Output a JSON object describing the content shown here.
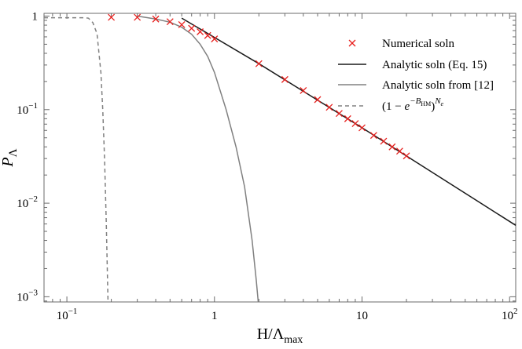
{
  "chart_data": {
    "type": "line",
    "xscale": "log",
    "yscale": "log",
    "xlim": [
      0.07,
      110
    ],
    "ylim": [
      0.00088,
      1.07
    ],
    "xlabel": {
      "main": "H/Λ",
      "sub": "max"
    },
    "ylabel": {
      "main": "P",
      "sub": "Λ"
    },
    "x_ticks": [
      {
        "value": 0.1,
        "mantissa": "10",
        "exp": "−1"
      },
      {
        "value": 1,
        "mantissa": "1",
        "exp": ""
      },
      {
        "value": 10,
        "mantissa": "10",
        "exp": ""
      },
      {
        "value": 100,
        "mantissa": "10",
        "exp": "2"
      }
    ],
    "y_ticks": [
      {
        "value": 1,
        "mantissa": "1",
        "exp": ""
      },
      {
        "value": 0.1,
        "mantissa": "10",
        "exp": "−1"
      },
      {
        "value": 0.01,
        "mantissa": "10",
        "exp": "−2"
      },
      {
        "value": 0.001,
        "mantissa": "10",
        "exp": "−3"
      }
    ],
    "legend_position": "top-right",
    "series": [
      {
        "name": "Numerical soln",
        "kind": "markers",
        "marker": "x",
        "color": "#e8201e",
        "points": [
          [
            0.2,
            0.97
          ],
          [
            0.3,
            0.97
          ],
          [
            0.4,
            0.93
          ],
          [
            0.5,
            0.87
          ],
          [
            0.6,
            0.81
          ],
          [
            0.7,
            0.74
          ],
          [
            0.8,
            0.68
          ],
          [
            0.9,
            0.62
          ],
          [
            1.0,
            0.57
          ],
          [
            2.0,
            0.31
          ],
          [
            3.0,
            0.21
          ],
          [
            4.0,
            0.16
          ],
          [
            5.0,
            0.128
          ],
          [
            6.0,
            0.106
          ],
          [
            7.0,
            0.091
          ],
          [
            8.0,
            0.08
          ],
          [
            9.0,
            0.071
          ],
          [
            10.0,
            0.064
          ],
          [
            12.0,
            0.053
          ],
          [
            14.0,
            0.046
          ],
          [
            16.0,
            0.04
          ],
          [
            18.0,
            0.036
          ],
          [
            20.0,
            0.032
          ]
        ]
      },
      {
        "name": "Analytic soln (Eq. 15)",
        "kind": "line",
        "color": "#1a1a1a",
        "dash": "",
        "points": [
          [
            0.6,
            0.95
          ],
          [
            2.0,
            0.31
          ],
          [
            10.0,
            0.064
          ],
          [
            20.0,
            0.032
          ],
          [
            110.0,
            0.0058
          ]
        ]
      },
      {
        "name": "Analytic soln from [12]",
        "kind": "line",
        "color": "#808080",
        "dash": "",
        "points": [
          [
            0.3,
            1.0
          ],
          [
            0.4,
            0.93
          ],
          [
            0.5,
            0.86
          ],
          [
            0.6,
            0.76
          ],
          [
            0.7,
            0.64
          ],
          [
            0.8,
            0.5
          ],
          [
            0.9,
            0.37
          ],
          [
            1.0,
            0.25
          ],
          [
            1.2,
            0.1
          ],
          [
            1.4,
            0.04
          ],
          [
            1.6,
            0.015
          ],
          [
            1.8,
            0.004
          ],
          [
            1.92,
            0.0015
          ],
          [
            1.98,
            0.00088
          ]
        ]
      },
      {
        "name": "(1 − e^{−B_HM})^{N_e}",
        "kind": "line",
        "color": "#808080",
        "dash": "5,4",
        "points": [
          [
            0.07,
            0.96
          ],
          [
            0.13,
            0.96
          ],
          [
            0.14,
            0.95
          ],
          [
            0.15,
            0.85
          ],
          [
            0.16,
            0.65
          ],
          [
            0.17,
            0.25
          ],
          [
            0.175,
            0.1
          ],
          [
            0.18,
            0.03
          ],
          [
            0.185,
            0.006
          ],
          [
            0.19,
            0.00088
          ]
        ]
      }
    ],
    "legend_text": {
      "base": "(1 − ",
      "e": "e",
      "exp_main": "−B",
      "exp_sub": "HM",
      "close": ")",
      "outer_main": "N",
      "outer_sub": "e"
    }
  }
}
